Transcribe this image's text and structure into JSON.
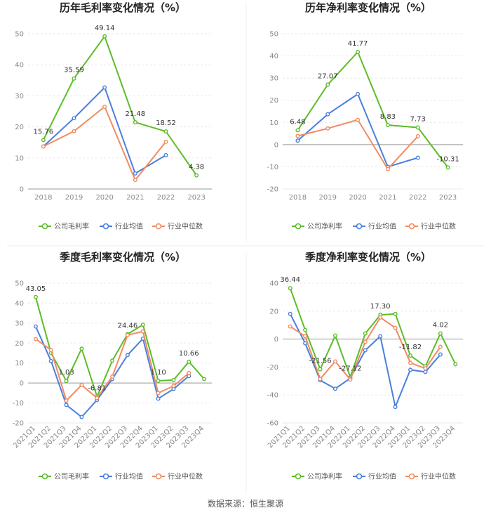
{
  "footer": "数据来源：恒生聚源",
  "colors": {
    "company": "#5cbd28",
    "avg": "#4a7fdd",
    "median": "#f28b62"
  },
  "chart_data": [
    {
      "type": "line",
      "title": "历年毛利率变化情况（%）",
      "categories": [
        "2018",
        "2019",
        "2020",
        "2021",
        "2022",
        "2023"
      ],
      "ylim": [
        0,
        50
      ],
      "yticks": [
        0,
        10,
        20,
        30,
        40,
        50
      ],
      "series": [
        {
          "name": "公司毛利率",
          "key": "company",
          "values": [
            15.76,
            35.59,
            49.14,
            21.48,
            18.52,
            4.38
          ]
        },
        {
          "name": "行业均值",
          "key": "avg",
          "values": [
            13.7,
            22.8,
            32.7,
            5.0,
            10.9,
            null
          ]
        },
        {
          "name": "行业中位数",
          "key": "median",
          "values": [
            13.7,
            18.6,
            26.5,
            2.9,
            15.2,
            null
          ]
        }
      ],
      "labels": [
        {
          "index": 0,
          "text": "15.76"
        },
        {
          "index": 1,
          "text": "35.59"
        },
        {
          "index": 2,
          "text": "49.14"
        },
        {
          "index": 3,
          "text": "21.48"
        },
        {
          "index": 4,
          "text": "18.52"
        },
        {
          "index": 5,
          "text": "4.38"
        }
      ],
      "legend": [
        "公司毛利率",
        "行业均值",
        "行业中位数"
      ]
    },
    {
      "type": "line",
      "title": "历年净利率变化情况（%）",
      "categories": [
        "2018",
        "2019",
        "2020",
        "2021",
        "2022",
        "2023"
      ],
      "ylim": [
        -20,
        50
      ],
      "yticks": [
        -20,
        -10,
        0,
        10,
        20,
        30,
        40,
        50
      ],
      "series": [
        {
          "name": "公司净利率",
          "key": "company",
          "values": [
            6.48,
            27.07,
            41.77,
            8.83,
            7.73,
            -10.31
          ]
        },
        {
          "name": "行业均值",
          "key": "avg",
          "values": [
            1.8,
            13.7,
            22.8,
            -10.0,
            -5.9,
            null
          ]
        },
        {
          "name": "行业中位数",
          "key": "median",
          "values": [
            3.9,
            7.3,
            11.2,
            -11.0,
            3.8,
            null
          ]
        }
      ],
      "labels": [
        {
          "index": 0,
          "text": "6.48"
        },
        {
          "index": 1,
          "text": "27.07"
        },
        {
          "index": 2,
          "text": "41.77"
        },
        {
          "index": 3,
          "text": "8.83"
        },
        {
          "index": 4,
          "text": "7.73"
        },
        {
          "index": 5,
          "text": "-10.31"
        }
      ],
      "legend": [
        "公司净利率",
        "行业均值",
        "行业中位数"
      ]
    },
    {
      "type": "line",
      "title": "季度毛利率变化情况（%）",
      "categories": [
        "2021Q1",
        "2021Q2",
        "2021Q3",
        "2021Q4",
        "2022Q1",
        "2022Q2",
        "2022Q3",
        "2022Q4",
        "2023Q1",
        "2023Q2",
        "2023Q3",
        "2023Q4"
      ],
      "ylim": [
        -20,
        50
      ],
      "yticks": [
        -20,
        -10,
        0,
        10,
        20,
        30,
        40,
        50
      ],
      "series": [
        {
          "name": "公司毛利率",
          "key": "company",
          "values": [
            43.05,
            15.0,
            1.03,
            17.2,
            -6.81,
            11.2,
            24.46,
            29.2,
            1.1,
            1.5,
            10.66,
            2.0
          ]
        },
        {
          "name": "行业均值",
          "key": "avg",
          "values": [
            28.3,
            11.0,
            -11.0,
            -17.0,
            -8.5,
            2.0,
            14.0,
            22.2,
            -7.8,
            -3.0,
            3.5,
            null
          ]
        },
        {
          "name": "行业中位数",
          "key": "median",
          "values": [
            22.0,
            16.5,
            -8.8,
            -1.0,
            -7.5,
            3.2,
            24.0,
            25.8,
            -5.0,
            -1.5,
            5.0,
            null
          ]
        }
      ],
      "labels": [
        {
          "index": 0,
          "text": "43.05"
        },
        {
          "index": 2,
          "text": "1.03"
        },
        {
          "index": 4,
          "text": "-6.81"
        },
        {
          "index": 6,
          "text": "24.46"
        },
        {
          "index": 8,
          "text": "1.10"
        },
        {
          "index": 10,
          "text": "10.66"
        }
      ],
      "legend": [
        "公司毛利率",
        "行业均值",
        "行业中位数"
      ]
    },
    {
      "type": "line",
      "title": "季度净利率变化情况（%）",
      "categories": [
        "2021Q1",
        "2021Q2",
        "2021Q3",
        "2021Q4",
        "2022Q1",
        "2022Q2",
        "2022Q3",
        "2022Q4",
        "2023Q1",
        "2023Q2",
        "2023Q3",
        "2023Q4"
      ],
      "ylim": [
        -60,
        40
      ],
      "yticks": [
        -60,
        -40,
        -20,
        0,
        20,
        40
      ],
      "series": [
        {
          "name": "公司净利率",
          "key": "company",
          "values": [
            36.44,
            6.5,
            -21.56,
            2.5,
            -27.12,
            4.0,
            17.3,
            18.0,
            -11.82,
            -19.5,
            4.02,
            -18.0
          ]
        },
        {
          "name": "行业均值",
          "key": "avg",
          "values": [
            18.0,
            -3.0,
            -29.5,
            -35.5,
            -28.0,
            -8.0,
            2.0,
            -48.5,
            -22.0,
            -23.5,
            -11.0,
            null
          ]
        },
        {
          "name": "行业中位数",
          "key": "median",
          "values": [
            9.0,
            2.0,
            -28.5,
            -16.0,
            -29.0,
            -2.0,
            15.5,
            8.0,
            -17.0,
            -21.0,
            -5.5,
            null
          ]
        }
      ],
      "labels": [
        {
          "index": 0,
          "text": "36.44"
        },
        {
          "index": 2,
          "text": "-21.56"
        },
        {
          "index": 4,
          "text": "-27.12"
        },
        {
          "index": 6,
          "text": "17.30"
        },
        {
          "index": 8,
          "text": "-11.82"
        },
        {
          "index": 10,
          "text": "4.02"
        }
      ],
      "legend": [
        "公司净利率",
        "行业均值",
        "行业中位数"
      ]
    }
  ]
}
